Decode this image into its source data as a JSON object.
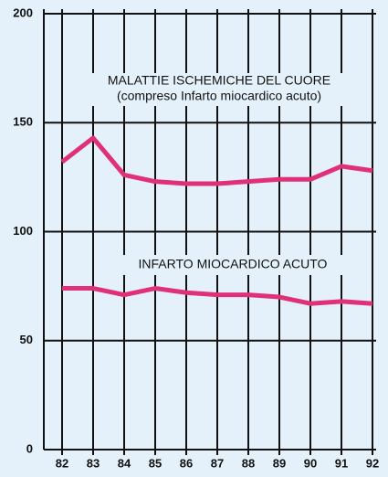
{
  "chart_data": {
    "type": "line",
    "categories": [
      "82",
      "83",
      "84",
      "85",
      "86",
      "87",
      "88",
      "89",
      "90",
      "91",
      "92"
    ],
    "series": [
      {
        "name": "MALATTIE ISCHEMICHE DEL CUORE",
        "color": "#e0307a",
        "values": [
          132,
          143,
          126,
          123,
          122,
          122,
          123,
          124,
          124,
          130,
          128
        ]
      },
      {
        "name": "INFARTO MIOCARDICO ACUTO",
        "color": "#e0307a",
        "values": [
          74,
          74,
          71,
          74,
          72,
          71,
          71,
          70,
          67,
          68,
          67
        ]
      }
    ],
    "annotations": [
      "(compreso Infarto miocardico acuto)"
    ],
    "ylim": [
      0,
      200
    ],
    "yticks": [
      0,
      50,
      100,
      150,
      200
    ],
    "grid": true
  }
}
